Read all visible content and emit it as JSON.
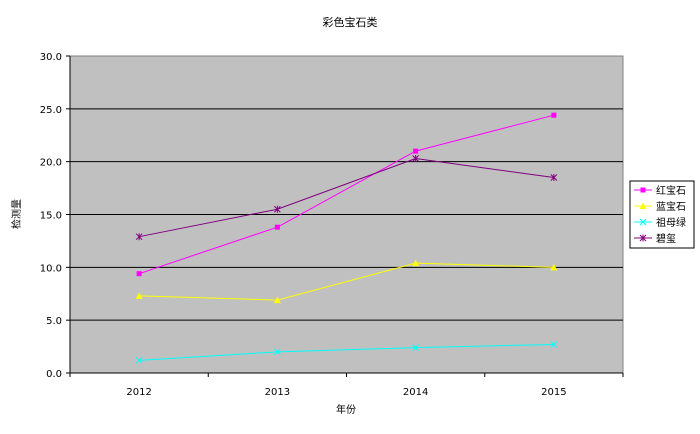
{
  "chart_data": {
    "type": "line",
    "title": "彩色宝石类",
    "xlabel": "年份",
    "ylabel": "检测量",
    "categories": [
      "2012",
      "2013",
      "2014",
      "2015"
    ],
    "ylim": [
      0,
      30
    ],
    "yticks": [
      "0.0",
      "5.0",
      "10.0",
      "15.0",
      "20.0",
      "25.0",
      "30.0"
    ],
    "grid": true,
    "plot_background": "#c0c0c0",
    "legend_position": "right",
    "series": [
      {
        "name": "红宝石",
        "values": [
          9.4,
          13.8,
          21.0,
          24.4
        ],
        "color": "#ff00ff",
        "marker": "square"
      },
      {
        "name": "蓝宝石",
        "values": [
          7.3,
          6.9,
          10.4,
          10.0
        ],
        "color": "#ffff00",
        "marker": "triangle"
      },
      {
        "name": "祖母绿",
        "values": [
          1.2,
          2.0,
          2.4,
          2.7
        ],
        "color": "#00ffff",
        "marker": "x"
      },
      {
        "name": "碧玺",
        "values": [
          12.9,
          15.5,
          20.3,
          18.5
        ],
        "color": "#800080",
        "marker": "star"
      }
    ]
  }
}
